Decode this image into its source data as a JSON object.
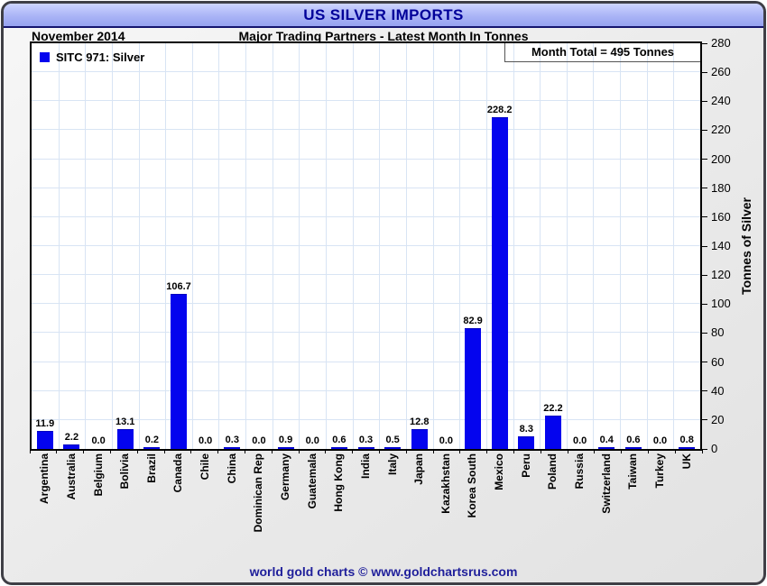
{
  "header": {
    "title": "US SILVER IMPORTS"
  },
  "subheader": {
    "date": "November 2014",
    "subtitle": "Major Trading Partners - Latest Month In Tonnes"
  },
  "legend": {
    "label": "SITC 971: Silver"
  },
  "annotations": {
    "month_total": "Month Total = 495 Tonnes"
  },
  "footer": {
    "credit": "world gold charts © www.goldchartsrus.com"
  },
  "colors": {
    "bar": "#0404ee",
    "gridline": "#d8e4f4",
    "title_text": "#000099",
    "footer_text": "#1f1f9b",
    "header_band": "#aab4f6"
  },
  "chart_data": {
    "type": "bar",
    "title": "US SILVER IMPORTS",
    "subtitle": "Major Trading Partners - Latest Month In Tonnes",
    "period": "November 2014",
    "series_name": "SITC 971: Silver",
    "categories": [
      "Argentina",
      "Australia",
      "Belgium",
      "Bolivia",
      "Brazil",
      "Canada",
      "Chile",
      "China",
      "Dominican Rep",
      "Germany",
      "Guatemala",
      "Hong Kong",
      "India",
      "Italy",
      "Japan",
      "Kazakhstan",
      "Korea South",
      "Mexico",
      "Peru",
      "Poland",
      "Russia",
      "Switzerland",
      "Taiwan",
      "Turkey",
      "UK"
    ],
    "values": [
      11.9,
      2.2,
      0.0,
      13.1,
      0.2,
      106.7,
      0.0,
      0.3,
      0.0,
      0.9,
      0.0,
      0.6,
      0.3,
      0.5,
      12.8,
      0.0,
      82.9,
      228.2,
      8.3,
      22.2,
      0.0,
      0.4,
      0.6,
      0.0,
      0.8
    ],
    "xlabel": "",
    "ylabel": "Tonnes of Silver",
    "ylim": [
      0,
      280
    ],
    "ytick_step": 20,
    "grid": true,
    "legend_position": "top-left",
    "yaxis_side": "right",
    "month_total_tonnes": 495
  }
}
